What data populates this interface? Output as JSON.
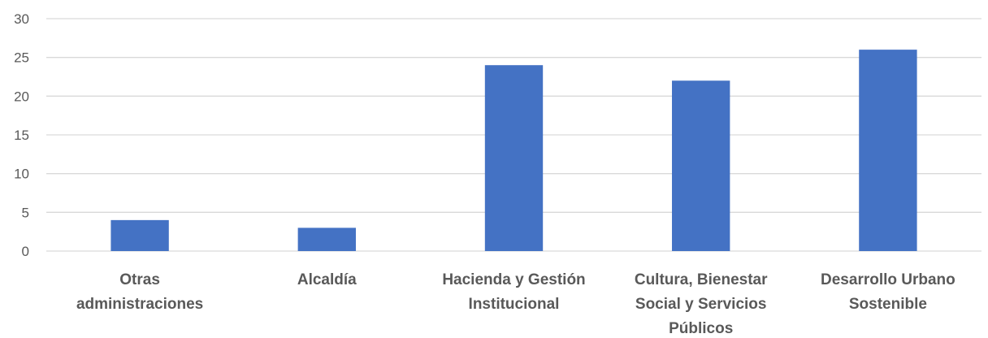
{
  "chart_data": {
    "type": "bar",
    "categories": [
      [
        "Otras",
        "administraciones"
      ],
      [
        "Alcaldía"
      ],
      [
        "Hacienda y Gestión",
        "Institucional"
      ],
      [
        "Cultura, Bienestar",
        "Social y Servicios",
        "Públicos"
      ],
      [
        "Desarrollo Urbano",
        "Sostenible"
      ]
    ],
    "values": [
      4,
      3,
      24,
      22,
      26
    ],
    "ylim": [
      0,
      30
    ],
    "yticks": [
      0,
      5,
      10,
      15,
      20,
      25,
      30
    ],
    "grid": true,
    "legend": "none",
    "bar_color": "#4472c4",
    "grid_color": "#d9d9d9",
    "title": "",
    "xlabel": "",
    "ylabel": ""
  }
}
